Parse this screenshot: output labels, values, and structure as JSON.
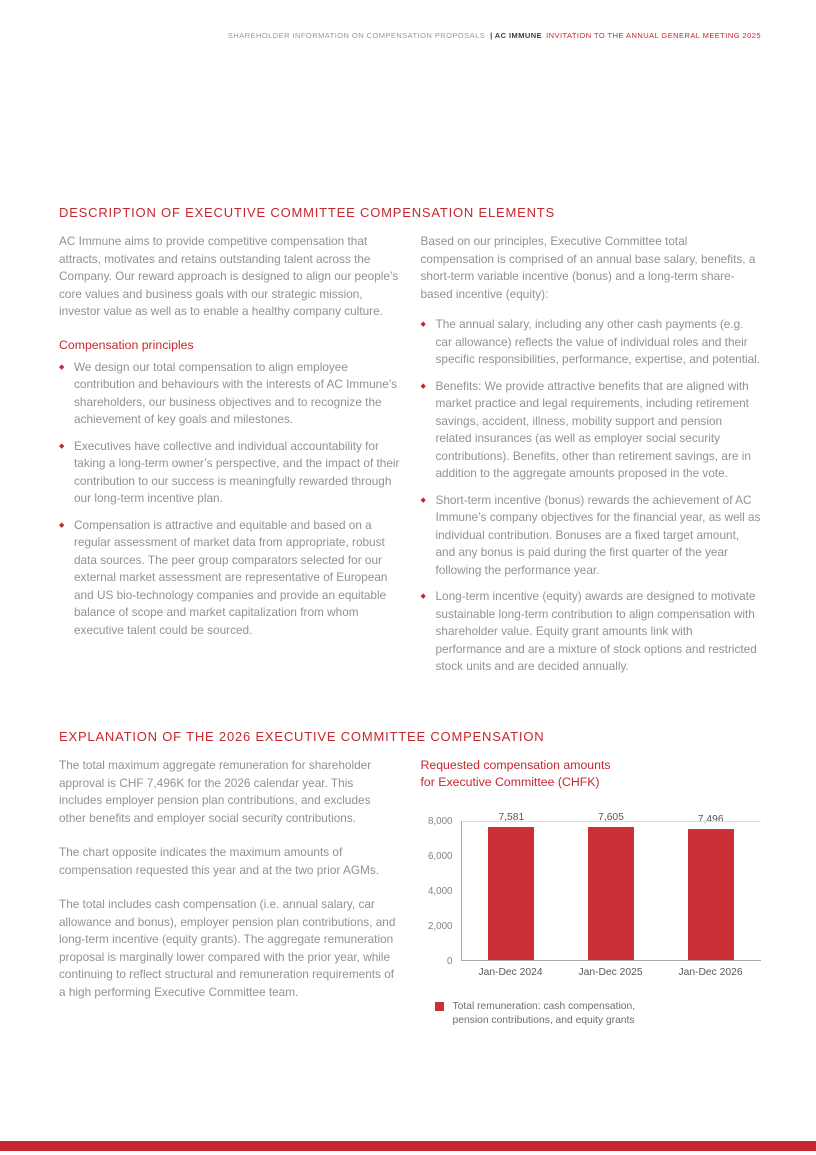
{
  "colors": {
    "accent_red": "#c5272e",
    "bar_red": "#cb3036",
    "body_gray": "#909294"
  },
  "header": {
    "left": "SHAREHOLDER INFORMATION ON COMPENSATION PROPOSALS",
    "separator": "|",
    "brand": "AC IMMUNE",
    "right": "INVITATION TO THE ANNUAL GENERAL MEETING 2025"
  },
  "section_description": {
    "title": "DESCRIPTION OF EXECUTIVE COMMITTEE COMPENSATION ELEMENTS",
    "intro_left": "AC Immune aims to provide competitive compensation that attracts, motivates and retains outstanding talent across the Company. Our reward approach is designed to align our people’s core values and business goals with our strategic mission, investor value as well as to enable a healthy company culture.",
    "principles_heading": "Compensation principles",
    "principles": [
      "We design our total compensation to align employee contribution and behaviours with the interests of AC Immune’s shareholders, our business objectives and to recognize the achievement of key goals and milestones.",
      "Executives have collective and individual accountability for taking a long-term owner’s perspective, and the impact of their contribution to our success is meaningfully rewarded through our long-term incentive plan.",
      "Compensation is attractive and equitable and based on a regular assessment of market data from appropriate, robust data sources. The peer group comparators selected for our external market assessment are representative of European and US bio-technology companies and provide an equitable balance of scope and market capitalization from whom executive talent could be sourced."
    ],
    "intro_right": "Based on our principles, Executive Committee total compensation is comprised of an annual base salary, benefits, a short-term variable incentive (bonus) and a long-term share-based incentive (equity):",
    "elements": [
      "The annual salary, including any other cash payments (e.g. car allowance) reflects the value of individual roles and their specific responsibilities, performance, expertise, and potential.",
      "Benefits: We provide attractive benefits that are aligned with market practice and legal requirements, including retirement savings, accident, illness, mobility support and pension related insurances (as well as employer social security contributions). Benefits, other than retirement savings, are in addition to the aggregate amounts proposed in the vote.",
      "Short-term incentive (bonus) rewards the achievement of AC Immune’s company objectives for the financial year, as well as individual contribution. Bonuses are a fixed target amount, and any bonus is paid during the first quarter of the year following the performance year.",
      "Long-term incentive (equity) awards are designed to motivate sustainable long-term contribution to align compensation with shareholder value. Equity grant amounts link with performance and are a mixture of stock options and restricted stock units and are decided annually."
    ]
  },
  "section_explanation": {
    "title": "EXPLANATION OF THE 2026 EXECUTIVE COMMITTEE COMPENSATION",
    "paragraphs": [
      "The total maximum aggregate remuneration for shareholder approval is CHF 7,496K for the 2026 calendar year. This includes employer pension plan contributions, and excludes other benefits and employer social security contributions.",
      "The chart opposite indicates the maximum amounts of compensation requested this year and at the two prior AGMs.",
      "The total includes cash compensation (i.e. annual salary, car allowance and bonus), employer pension plan contributions, and long-term incentive (equity grants). The aggregate remuneration proposal is marginally lower compared with the prior year, while continuing to reflect structural and remuneration requirements of a high performing Executive Committee team."
    ]
  },
  "chart_data": {
    "type": "bar",
    "title": "Requested compensation amounts for Executive Committee (CHFK)",
    "title_line1": "Requested compensation amounts",
    "title_line2": "for Executive Committee (CHFK)",
    "categories": [
      "Jan-Dec 2024",
      "Jan-Dec 2025",
      "Jan-Dec 2026"
    ],
    "values": [
      7581,
      7605,
      7496
    ],
    "value_labels": [
      "7,581",
      "7,605",
      "7,496"
    ],
    "ylim": [
      0,
      8000
    ],
    "yticks": [
      "8,000",
      "6,000",
      "4,000",
      "2,000",
      "0"
    ],
    "bar_color": "#cb3036",
    "grid": "horizontal line at top tick only, left and bottom axis lines",
    "legend_position": "bottom-left",
    "legend_line1": "Total remuneration: cash compensation,",
    "legend_line2": "pension contributions, and equity grants"
  }
}
